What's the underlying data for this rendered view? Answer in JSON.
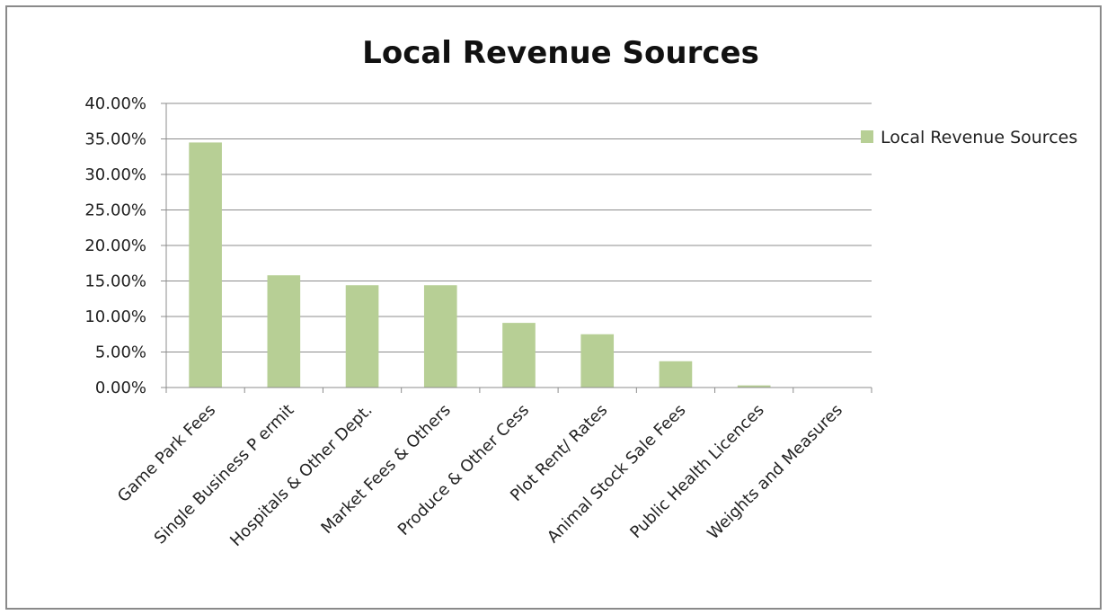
{
  "chart_data": {
    "type": "bar",
    "title": "Local Revenue Sources",
    "xlabel": "",
    "ylabel": "",
    "categories": [
      "Game Park Fees",
      "Single Business P ermit",
      "Hospitals & Other Dept.",
      "Market Fees & Others",
      "Produce & Other Cess",
      "Plot Rent/ Rates",
      "Animal Stock Sale Fees",
      "Public Health Licences",
      "Weights and Measures"
    ],
    "series": [
      {
        "name": "Local Revenue Sources",
        "values": [
          34.5,
          15.8,
          14.4,
          14.4,
          9.1,
          7.5,
          3.7,
          0.3,
          0.0
        ],
        "color": "#b7cf95"
      }
    ],
    "ylim": [
      0,
      40
    ],
    "y_ticks": [
      "0.00%",
      "5.00%",
      "10.00%",
      "15.00%",
      "20.00%",
      "25.00%",
      "30.00%",
      "35.00%",
      "40.00%"
    ],
    "grid": true,
    "legend_position": "top-right"
  }
}
